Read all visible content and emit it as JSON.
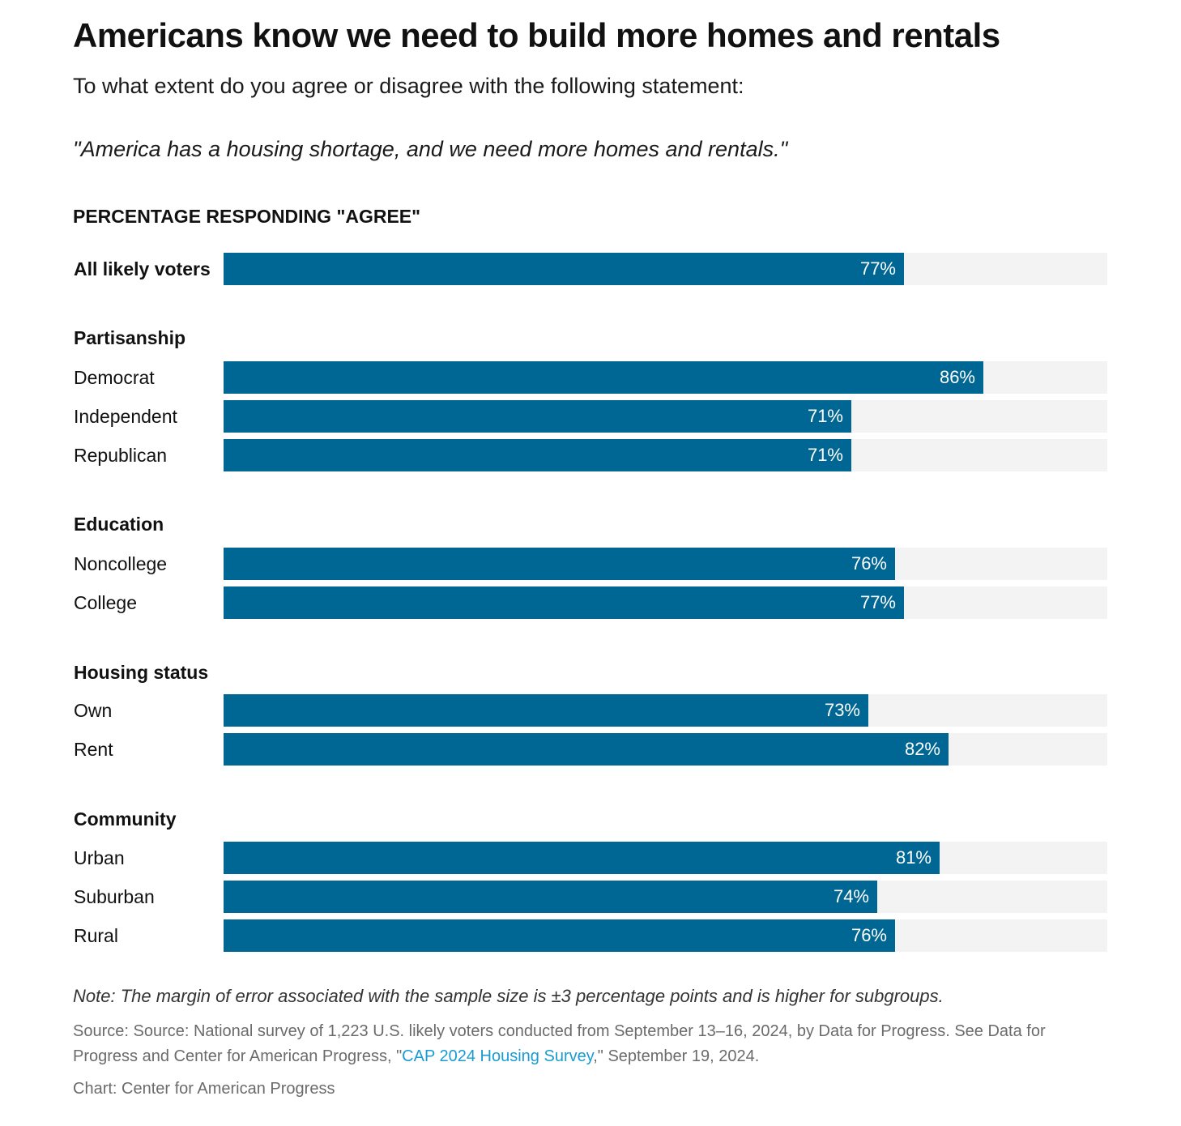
{
  "header": {
    "title": "Americans know we need to build more homes and rentals",
    "subtitle": "To what extent do you agree or disagree with the following statement:",
    "quote": "\"America has a housing shortage, and we need more homes and rentals.\"",
    "measure_label": "PERCENTAGE RESPONDING \"AGREE\""
  },
  "chart_data": {
    "type": "bar",
    "orientation": "horizontal",
    "value_range": [
      0,
      100
    ],
    "bar_color": "#006794",
    "track_color": "#f3f3f3",
    "groups": [
      {
        "name": "",
        "rows": [
          {
            "label": "All likely voters",
            "value": 77,
            "display": "77%",
            "bold": true
          }
        ]
      },
      {
        "name": "Partisanship",
        "rows": [
          {
            "label": "Democrat",
            "value": 86,
            "display": "86%"
          },
          {
            "label": "Independent",
            "value": 71,
            "display": "71%"
          },
          {
            "label": "Republican",
            "value": 71,
            "display": "71%"
          }
        ]
      },
      {
        "name": "Education",
        "rows": [
          {
            "label": "Noncollege",
            "value": 76,
            "display": "76%"
          },
          {
            "label": "College",
            "value": 77,
            "display": "77%"
          }
        ]
      },
      {
        "name": "Housing status",
        "rows": [
          {
            "label": "Own",
            "value": 73,
            "display": "73%"
          },
          {
            "label": "Rent",
            "value": 82,
            "display": "82%"
          }
        ]
      },
      {
        "name": "Community",
        "rows": [
          {
            "label": "Urban",
            "value": 81,
            "display": "81%"
          },
          {
            "label": "Suburban",
            "value": 74,
            "display": "74%"
          },
          {
            "label": "Rural",
            "value": 76,
            "display": "76%"
          }
        ]
      }
    ]
  },
  "footer": {
    "note": "Note: The margin of error associated with the sample size is ±3 percentage points and is higher for subgroups.",
    "source_prefix": "Source: Source: National survey of 1,223 U.S. likely voters conducted from September 13–16, 2024, by Data for Progress. See Data for Progress and Center for American Progress, \"",
    "source_link": "CAP 2024 Housing Survey",
    "source_suffix": ",\" September 19, 2024.",
    "credit": "Chart: Center for American Progress"
  },
  "colors": {
    "accent": "#006794",
    "link": "#1a9bd1",
    "muted_text": "#6b6b6b"
  }
}
